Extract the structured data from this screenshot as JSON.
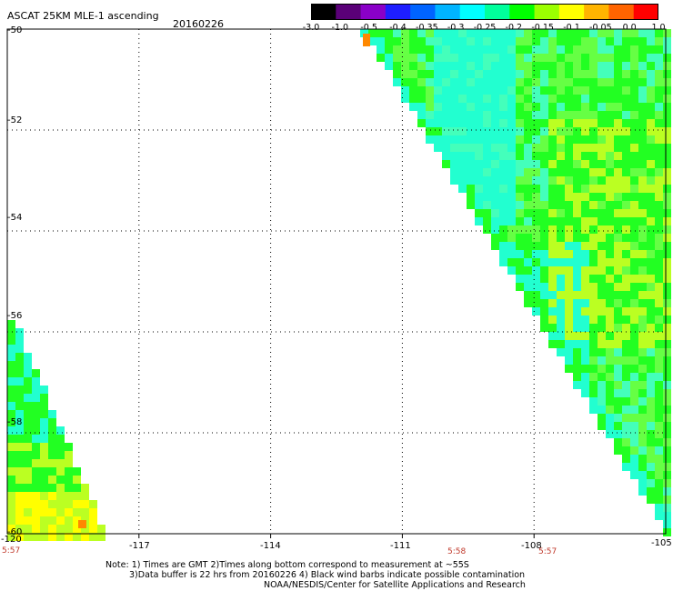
{
  "header": {
    "title": "ASCAT 25KM MLE-1 ascending",
    "date": "20160226"
  },
  "colorbar": {
    "labels": [
      "-3.0",
      "-1.0",
      "-0.5",
      "-0.4",
      "-0.35",
      "-0.3",
      "-0.25",
      "-0.2",
      "-0.15",
      "-0.1",
      "-0.05",
      "0.0",
      "1.0"
    ],
    "colors": [
      "#000000",
      "#5a0078",
      "#8a00c8",
      "#1e1eff",
      "#0064ff",
      "#00b4ff",
      "#00ffff",
      "#00ff9c",
      "#00ff00",
      "#9cff00",
      "#ffff00",
      "#ffb400",
      "#ff6400",
      "#ff0000"
    ]
  },
  "map": {
    "lon_labels": [
      "-120",
      "-117",
      "-114",
      "-111",
      "-108",
      "-105"
    ],
    "lat_labels": [
      "-50",
      "-52",
      "-54",
      "-56",
      "-58",
      "-60"
    ],
    "time_labels": [
      {
        "text": "5:57",
        "lon": -120
      },
      {
        "text": "5:58",
        "lon": -110
      },
      {
        "text": "5:57",
        "lon": -108
      }
    ],
    "swath_colors": {
      "cyan": "#22ffd0",
      "green": "#22ff22",
      "lightgreen": "#66ff44",
      "yellowgreen": "#bbff22",
      "yellow": "#ffff00",
      "orange": "#ff8800",
      "lightcyan": "#44ffbb"
    }
  },
  "notes": [
    "Note: 1) Times are GMT 2)Times along bottom correspond to measurement at ~55S",
    "3)Data buffer is 22 hrs from 20160226 4) Black wind barbs indicate possible contamination",
    "NOAA/NESDIS/Center for Satellite Applications and Research"
  ]
}
